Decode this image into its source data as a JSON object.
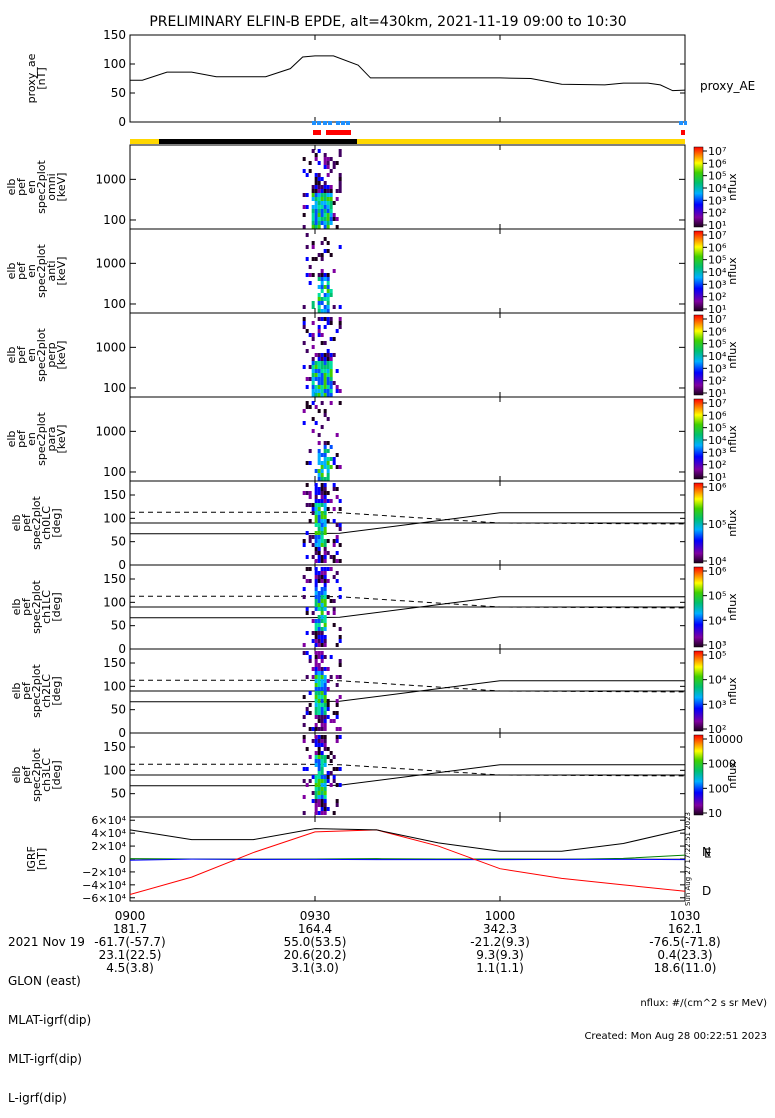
{
  "title": "PRELIMINARY ELFIN-B EPDE, alt=430km, 2021-11-19 09:00 to 10:30",
  "time_axis": {
    "start_min": 0,
    "end_min": 90,
    "ticks": [
      "0900",
      "0930",
      "1000",
      "1030"
    ],
    "tick_minutes": [
      0,
      30,
      60,
      90
    ]
  },
  "chart_data": [
    {
      "type": "line",
      "ylabel": "proxy_ae\n[nT]",
      "legend": "proxy_AE",
      "ylim": [
        0,
        150
      ],
      "yticks": [
        "0",
        "50",
        "100",
        "150"
      ],
      "x_minutes": [
        0,
        2,
        6,
        10,
        14,
        18,
        22,
        26,
        28,
        30,
        33,
        37,
        39,
        41,
        46,
        50,
        60,
        65,
        70,
        77,
        80,
        84,
        86,
        88,
        90
      ],
      "values": [
        72,
        72,
        86,
        86,
        78,
        78,
        78,
        92,
        112,
        114,
        114,
        98,
        76,
        76,
        76,
        76,
        76,
        75,
        65,
        64,
        67,
        67,
        64,
        54,
        55
      ]
    },
    {
      "type": "heatmap",
      "ylabel": "elb\npef\nen\nspec2plot\nomni\n[keV]",
      "ylim": [
        60,
        7000
      ],
      "yscale": "log",
      "yticks": [
        "100",
        "1000"
      ],
      "colorbar": {
        "label": "nflux",
        "ticks": [
          "10¹",
          "10²",
          "10³",
          "10⁴",
          "10⁵",
          "10⁶",
          "10⁷"
        ]
      },
      "active_interval_min": [
        28,
        34
      ]
    },
    {
      "type": "heatmap",
      "ylabel": "elb\npef\nen\nspec2plot\nanti\n[keV]",
      "ylim": [
        60,
        7000
      ],
      "yscale": "log",
      "yticks": [
        "100",
        "1000"
      ],
      "colorbar": {
        "label": "nflux",
        "ticks": [
          "10¹",
          "10²",
          "10³",
          "10⁴",
          "10⁵",
          "10⁶",
          "10⁷"
        ]
      },
      "active_interval_min": [
        28,
        34
      ]
    },
    {
      "type": "heatmap",
      "ylabel": "elb\npef\nen\nspec2plot\nperp\n[keV]",
      "ylim": [
        60,
        7000
      ],
      "yscale": "log",
      "yticks": [
        "100",
        "1000"
      ],
      "colorbar": {
        "label": "nflux",
        "ticks": [
          "10¹",
          "10²",
          "10³",
          "10⁴",
          "10⁵",
          "10⁶",
          "10⁷"
        ]
      },
      "active_interval_min": [
        28,
        34
      ]
    },
    {
      "type": "heatmap",
      "ylabel": "elb\npef\nen\nspec2plot\npara\n[keV]",
      "ylim": [
        60,
        7000
      ],
      "yscale": "log",
      "yticks": [
        "100",
        "1000"
      ],
      "colorbar": {
        "label": "nflux",
        "ticks": [
          "10¹",
          "10²",
          "10³",
          "10⁴",
          "10⁵",
          "10⁶",
          "10⁷"
        ]
      },
      "active_interval_min": [
        28,
        34
      ]
    },
    {
      "type": "heatmap",
      "ylabel": "elb\npef\nspec2plot\nch0LC\n[deg]",
      "ylim": [
        0,
        180
      ],
      "yticks": [
        "0",
        "50",
        "100",
        "150"
      ],
      "colorbar": {
        "label": "nflux",
        "ticks": [
          "10⁴",
          "10⁵",
          "10⁶"
        ]
      },
      "active_interval_min": [
        28,
        34
      ]
    },
    {
      "type": "heatmap",
      "ylabel": "elb\npef\nspec2plot\nch1LC\n[deg]",
      "ylim": [
        0,
        180
      ],
      "yticks": [
        "0",
        "50",
        "100",
        "150"
      ],
      "colorbar": {
        "label": "nflux",
        "ticks": [
          "10³",
          "10⁴",
          "10⁵",
          "10⁶"
        ]
      },
      "active_interval_min": [
        28,
        34
      ]
    },
    {
      "type": "heatmap",
      "ylabel": "elb\npef\nspec2plot\nch2LC\n[deg]",
      "ylim": [
        0,
        180
      ],
      "yticks": [
        "0",
        "50",
        "100",
        "150"
      ],
      "colorbar": {
        "label": "nflux",
        "ticks": [
          "10²",
          "10³",
          "10⁴",
          "10⁵"
        ]
      },
      "active_interval_min": [
        28,
        34
      ]
    },
    {
      "type": "heatmap",
      "ylabel": "elb\npef\nspec2plot\nch3LC\n[deg]",
      "ylim": [
        0,
        180
      ],
      "yticks": [
        "50",
        "100",
        "150"
      ],
      "colorbar": {
        "label": "nflux",
        "ticks": [
          "10",
          "100",
          "1000",
          "10000"
        ]
      },
      "active_interval_min": [
        28,
        34
      ]
    },
    {
      "type": "line",
      "ylabel": "IGRF\n[nT]",
      "ylim": [
        -65000,
        65000
      ],
      "yticks": [
        "6×10⁴",
        "4×10⁴",
        "2×10⁴",
        "0",
        "−2×10⁴",
        "−4×10⁴",
        "−6×10⁴"
      ],
      "x_minutes": [
        0,
        10,
        20,
        30,
        40,
        50,
        60,
        70,
        80,
        90
      ],
      "series": [
        {
          "name": "N",
          "color": "#008000",
          "values": [
            500,
            0,
            -500,
            0,
            500,
            0,
            0,
            -500,
            1000,
            6000
          ]
        },
        {
          "name": "E",
          "color": "#0000ff",
          "values": [
            -2000,
            -200,
            -500,
            -500,
            -1000,
            -1000,
            -1000,
            -500,
            -500,
            -1000
          ]
        },
        {
          "name": "D",
          "color": "#ff0000",
          "values": [
            -55000,
            -28000,
            10000,
            42000,
            45000,
            20000,
            -15000,
            -30000,
            -40000,
            -50000
          ]
        },
        {
          "name": "",
          "color": "#000000",
          "values": [
            45000,
            30000,
            30000,
            47000,
            45000,
            25000,
            12000,
            12000,
            24000,
            46000
          ]
        }
      ]
    }
  ],
  "footer": {
    "rows": [
      {
        "label": "2021 Nov 19",
        "values": [
          "0900",
          "0930",
          "1000",
          "1030"
        ]
      },
      {
        "label": "GLON (east)",
        "values": [
          "181.7",
          "164.4",
          "342.3",
          "162.1"
        ]
      },
      {
        "label": "MLAT-igrf(dip)",
        "values": [
          "-61.7(-57.7)",
          "55.0(53.5)",
          "-21.2(9.3)",
          "-76.5(-71.8)"
        ]
      },
      {
        "label": "MLT-igrf(dip)",
        "values": [
          "23.1(22.5)",
          "20.6(20.2)",
          "9.3(9.3)",
          "0.4(23.3)"
        ]
      },
      {
        "label": "L-igrf(dip)",
        "values": [
          "4.5(3.8)",
          "3.1(3.0)",
          "1.1(1.1)",
          "18.6(11.0)"
        ]
      }
    ],
    "units_note": "nflux: #/(cm^2 s sr MeV)",
    "created": "Created: Mon Aug 28 00:22:51 2023",
    "side_stamp": "Sun Aug 27 17:22:51 2023"
  }
}
